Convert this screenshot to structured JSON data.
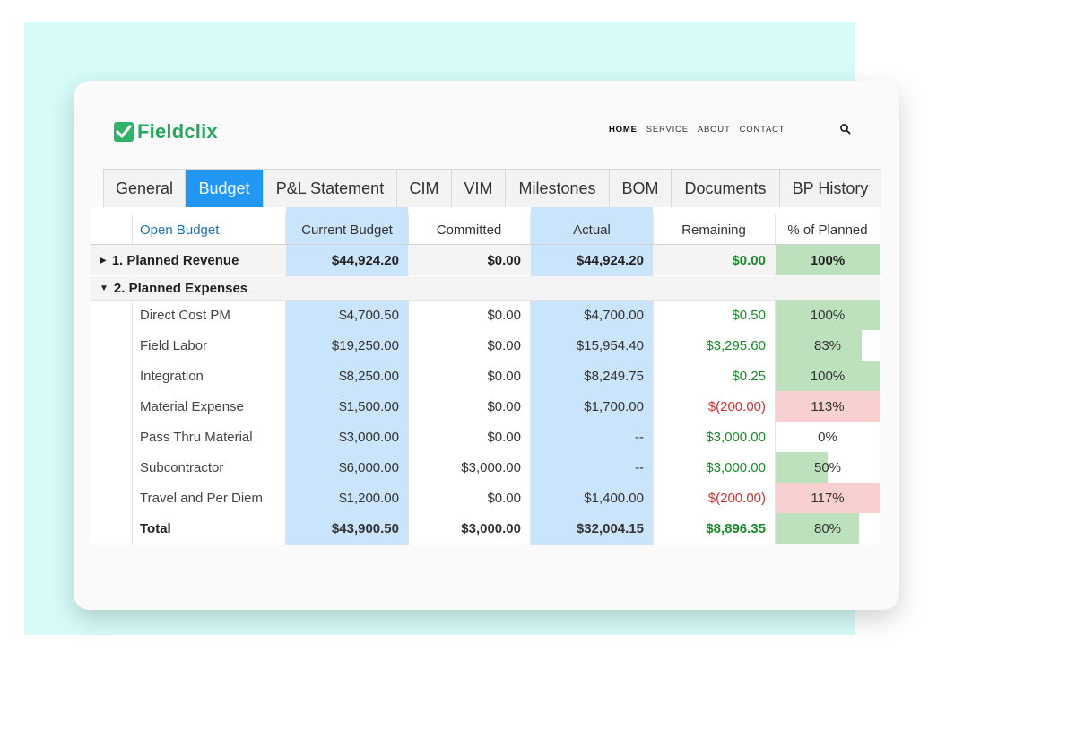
{
  "brand": {
    "name": "Fieldclix",
    "color": "#24a85f"
  },
  "nav": {
    "items": [
      "HOME",
      "SERVICE",
      "ABOUT",
      "CONTACT"
    ],
    "active": "HOME",
    "search_icon": "search-icon"
  },
  "tabs": [
    {
      "label": "General"
    },
    {
      "label": "Budget",
      "active": true
    },
    {
      "label": "P&L Statement"
    },
    {
      "label": "CIM"
    },
    {
      "label": "VIM"
    },
    {
      "label": "Milestones"
    },
    {
      "label": "BOM"
    },
    {
      "label": "Documents"
    },
    {
      "label": "BP History"
    }
  ],
  "table": {
    "headers": [
      "Open Budget",
      "Current Budget",
      "Committed",
      "Actual",
      "Remaining",
      "% of Planned"
    ],
    "sections": [
      {
        "label": "1. Planned Revenue",
        "expanded": false,
        "current": "$44,924.20",
        "committed": "$0.00",
        "actual": "$44,924.20",
        "remaining": "$0.00",
        "pct": "100%",
        "pct_value": 100
      },
      {
        "label": "2. Planned Expenses",
        "expanded": true
      }
    ],
    "rows": [
      {
        "name": "Direct Cost PM",
        "current": "$4,700.50",
        "committed": "$0.00",
        "actual": "$4,700.00",
        "remaining": "$0.50",
        "remaining_status": "positive",
        "pct": "100%",
        "pct_value": 100
      },
      {
        "name": "Field Labor",
        "current": "$19,250.00",
        "committed": "$0.00",
        "actual": "$15,954.40",
        "remaining": "$3,295.60",
        "remaining_status": "positive",
        "pct": "83%",
        "pct_value": 83
      },
      {
        "name": "Integration",
        "current": "$8,250.00",
        "committed": "$0.00",
        "actual": "$8,249.75",
        "remaining": "$0.25",
        "remaining_status": "positive",
        "pct": "100%",
        "pct_value": 100
      },
      {
        "name": "Material Expense",
        "current": "$1,500.00",
        "committed": "$0.00",
        "actual": "$1,700.00",
        "remaining": "$(200.00)",
        "remaining_status": "negative",
        "pct": "113%",
        "pct_value": 113
      },
      {
        "name": "Pass Thru Material",
        "current": "$3,000.00",
        "committed": "$0.00",
        "actual": "--",
        "remaining": "$3,000.00",
        "remaining_status": "positive",
        "pct": "0%",
        "pct_value": 0
      },
      {
        "name": "Subcontractor",
        "current": "$6,000.00",
        "committed": "$3,000.00",
        "actual": "--",
        "remaining": "$3,000.00",
        "remaining_status": "positive",
        "pct": "50%",
        "pct_value": 50
      },
      {
        "name": "Travel and Per Diem",
        "current": "$1,200.00",
        "committed": "$0.00",
        "actual": "$1,400.00",
        "remaining": "$(200.00)",
        "remaining_status": "negative",
        "pct": "117%",
        "pct_value": 117
      }
    ],
    "total": {
      "name": "Total",
      "current": "$43,900.50",
      "committed": "$3,000.00",
      "actual": "$32,004.15",
      "remaining": "$8,896.35",
      "pct": "80%",
      "pct_value": 80
    }
  },
  "colors": {
    "tab_active": "#2196f3",
    "budget_column": "#c9e4fb",
    "pct_ok": "#bde0bd",
    "pct_over": "#f7d0cf",
    "positive": "#1a8a2a",
    "negative": "#d32f2f"
  }
}
